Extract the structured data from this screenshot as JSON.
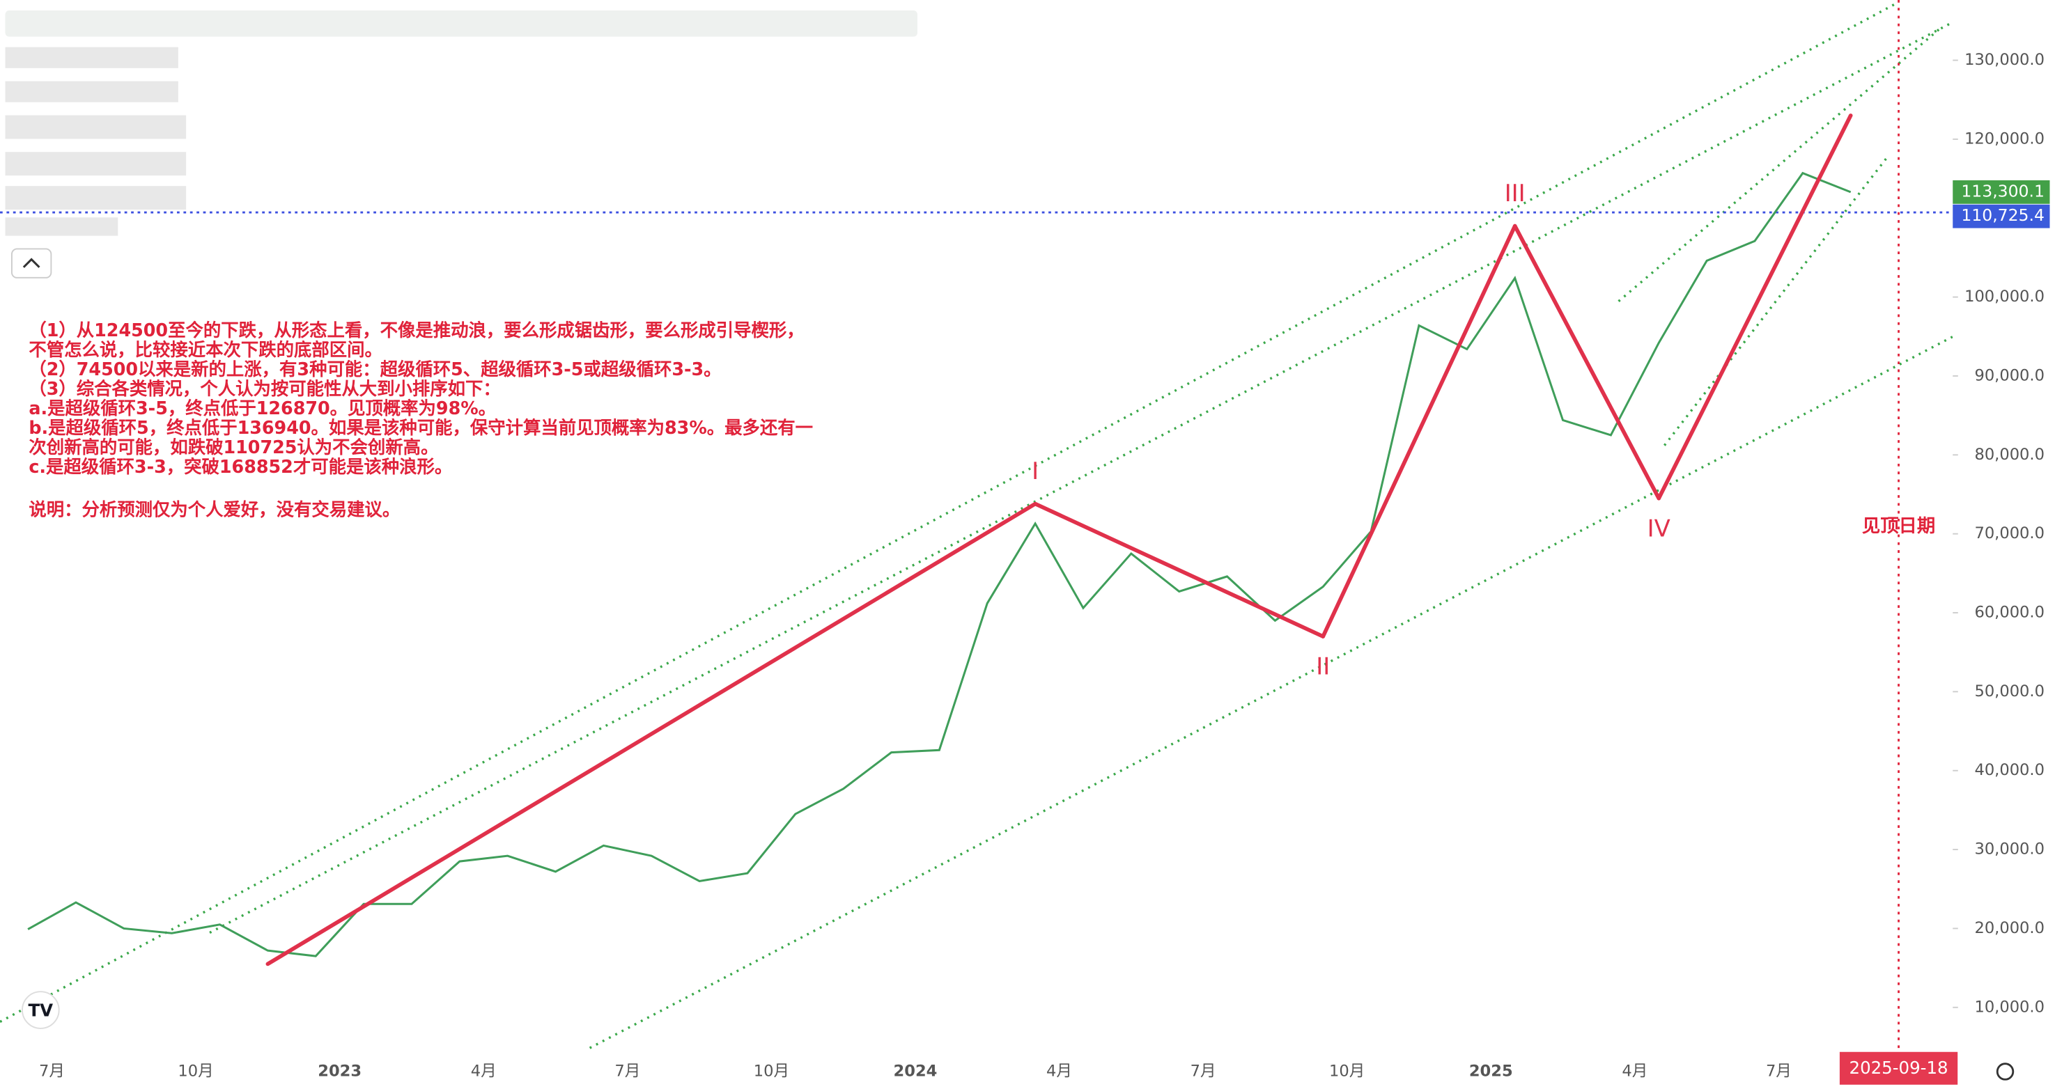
{
  "chart_data": {
    "type": "line",
    "categories": [
      null,
      "7月",
      null,
      null,
      "10月",
      null,
      null,
      "2023",
      null,
      null,
      "4月",
      null,
      null,
      "7月",
      null,
      null,
      "10月",
      null,
      null,
      "2024",
      null,
      null,
      "4月",
      null,
      null,
      "7月",
      null,
      null,
      "10月",
      null,
      null,
      "2025",
      null,
      null,
      "4月",
      null,
      null,
      "7月",
      null,
      null
    ],
    "year_labels": [
      "2023",
      "2024",
      "2025"
    ],
    "series": [
      {
        "color": "#3f9e5a",
        "values": [
          19900,
          23300,
          20000,
          19400,
          20500,
          17200,
          16500,
          23100,
          23100,
          28500,
          29200,
          27200,
          30500,
          29200,
          26000,
          27000,
          34500,
          37700,
          42300,
          42600,
          61200,
          71300,
          60600,
          67500,
          62700,
          64600,
          59000,
          63300,
          70300,
          96400,
          93400,
          102400,
          84400,
          82500,
          94200,
          104600,
          107100,
          115700,
          113300.1,
          null
        ]
      },
      {
        "color": "#e0314b",
        "values": [
          null,
          null,
          null,
          null,
          null,
          15500,
          null,
          null,
          null,
          null,
          null,
          null,
          null,
          null,
          null,
          null,
          null,
          null,
          null,
          null,
          null,
          73800,
          null,
          null,
          null,
          null,
          null,
          57000,
          null,
          null,
          null,
          109000,
          null,
          null,
          74500,
          null,
          null,
          null,
          123000,
          null
        ],
        "labels": [
          null,
          null,
          null,
          null,
          null,
          null,
          null,
          null,
          null,
          null,
          null,
          null,
          null,
          null,
          null,
          null,
          null,
          null,
          null,
          null,
          null,
          "I",
          null,
          null,
          null,
          null,
          null,
          "II",
          null,
          null,
          null,
          "III",
          null,
          null,
          "IV",
          null,
          null,
          null,
          null,
          null
        ]
      }
    ],
    "ylim": [
      4855,
      137635
    ],
    "yticks": [
      {
        "value": 10000,
        "label": "10,000.0"
      },
      {
        "value": 20000,
        "label": "20,000.0"
      },
      {
        "value": 30000,
        "label": "30,000.0"
      },
      {
        "value": 40000,
        "label": "40,000.0"
      },
      {
        "value": 50000,
        "label": "50,000.0"
      },
      {
        "value": 60000,
        "label": "60,000.0"
      },
      {
        "value": 70000,
        "label": "70,000.0"
      },
      {
        "value": 80000,
        "label": "80,000.0"
      },
      {
        "value": 90000,
        "label": "90,000.0"
      },
      {
        "value": 100000,
        "label": "100,000.0"
      },
      {
        "value": 110000,
        "label": "110,000.0"
      },
      {
        "value": 120000,
        "label": "120,000.0"
      },
      {
        "value": 130000,
        "label": "130,000.0"
      }
    ],
    "last_price": {
      "value": 113300.1,
      "label": "113,300.1"
    },
    "level": {
      "value": 110725.4,
      "label": "110,725.4"
    },
    "top_date": {
      "label": "2025-09-18",
      "caption": "见顶日期"
    },
    "notes": [
      "（1）从124500至今的下跌，从形态上看，不像是推动浪，要么形成锯齿形，要么形成引导楔形，",
      "不管怎么说，比较接近本次下跌的底部区间。",
      "（2）74500以来是新的上涨，有3种可能：超级循环5、超级循环3-5或超级循环3-3。",
      "（3）综合各类情况，个人认为按可能性从大到小排序如下：",
      "a.是超级循环3-5，终点低于126870。见顶概率为98%。",
      "b.是超级循环5，终点低于136940。如果是该种可能，保守计算当前见顶概率为83%。最多还有一",
      "次创新高的可能，如跌破110725认为不会创新高。",
      "c.是超级循环3-3，突破168852才可能是该种浪形。"
    ],
    "disclaimer": "说明：分析预测仅为个人爱好，没有交易建议。"
  }
}
